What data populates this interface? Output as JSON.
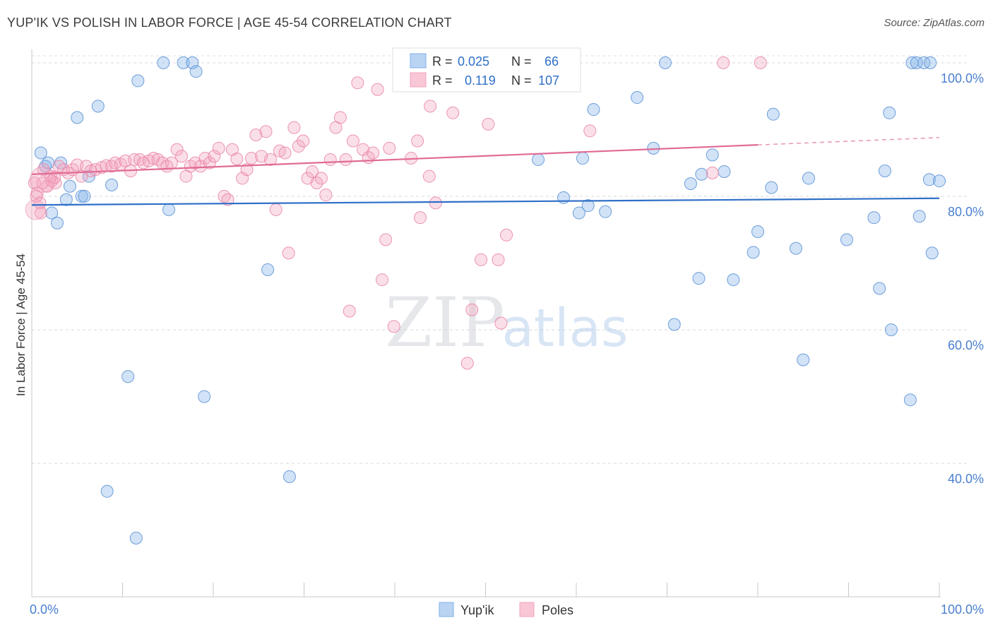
{
  "header": {
    "title": "YUP'IK VS POLISH IN LABOR FORCE | AGE 45-54 CORRELATION CHART",
    "source": "Source: ZipAtlas.com"
  },
  "watermark": {
    "zip": "ZIP",
    "atlas": "atlas"
  },
  "legend_box": {
    "rows": [
      {
        "r_label": "R =",
        "r_value": "0.025",
        "n_label": "N =",
        "n_value": "66",
        "color": "#7fb0e8"
      },
      {
        "r_label": "R =",
        "r_value": "0.119",
        "n_label": "N =",
        "n_value": "107",
        "color": "#f4a3bd"
      }
    ]
  },
  "chart_data": {
    "type": "scatter",
    "title": "YUP'IK VS POLISH IN LABOR FORCE | AGE 45-54 CORRELATION CHART",
    "xlabel": "",
    "ylabel": "In Labor Force | Age 45-54",
    "xlim": [
      0,
      100
    ],
    "ylim": [
      20,
      102
    ],
    "x_tick_labels": [
      "0.0%",
      "100.0%"
    ],
    "y_ticks": [
      40,
      60,
      80,
      100
    ],
    "y_tick_labels": [
      "40.0%",
      "60.0%",
      "80.0%",
      "100.0%"
    ],
    "grid": true,
    "legend_position": "bottom-center",
    "series": [
      {
        "name": "Yup'ik",
        "color": "#7fb0e8",
        "stroke": "#5e95d6",
        "trend": {
          "x": [
            0,
            100
          ],
          "y": [
            78.7,
            79.7
          ],
          "color": "#2f6fc7"
        },
        "points": [
          [
            1,
            86.5
          ],
          [
            1.5,
            84.5
          ],
          [
            1.8,
            85
          ],
          [
            2.2,
            77.5
          ],
          [
            2.8,
            76
          ],
          [
            3.2,
            85
          ],
          [
            3.8,
            79.5
          ],
          [
            4.2,
            81.5
          ],
          [
            5,
            91.8
          ],
          [
            5.5,
            80
          ],
          [
            5.8,
            80
          ],
          [
            6.3,
            83
          ],
          [
            7.3,
            93.5
          ],
          [
            8.3,
            35.8
          ],
          [
            8.8,
            81.7
          ],
          [
            10.6,
            53
          ],
          [
            11.5,
            28.8
          ],
          [
            11.7,
            97.3
          ],
          [
            14.5,
            100
          ],
          [
            15.1,
            78
          ],
          [
            16.7,
            100
          ],
          [
            17.7,
            100
          ],
          [
            18.1,
            98.7
          ],
          [
            19,
            50
          ],
          [
            26,
            69
          ],
          [
            28.4,
            38
          ],
          [
            55.8,
            85.5
          ],
          [
            58.6,
            79.8
          ],
          [
            60.3,
            77.5
          ],
          [
            60.7,
            85.7
          ],
          [
            61.3,
            78.6
          ],
          [
            61.9,
            93
          ],
          [
            63.2,
            77.7
          ],
          [
            66.7,
            94.8
          ],
          [
            68.5,
            87.2
          ],
          [
            70.8,
            60.8
          ],
          [
            69.8,
            100
          ],
          [
            72.6,
            81.9
          ],
          [
            73.5,
            67.7
          ],
          [
            73.8,
            83.3
          ],
          [
            75,
            86.2
          ],
          [
            76.3,
            83.7
          ],
          [
            77.3,
            67.5
          ],
          [
            79.5,
            71.6
          ],
          [
            80,
            74.7
          ],
          [
            81.5,
            81.3
          ],
          [
            81.7,
            92.3
          ],
          [
            84.2,
            72.2
          ],
          [
            85,
            55.5
          ],
          [
            85.6,
            82.7
          ],
          [
            89.8,
            73.5
          ],
          [
            92.8,
            76.8
          ],
          [
            93.4,
            66.2
          ],
          [
            94,
            83.8
          ],
          [
            94.5,
            92.5
          ],
          [
            94.7,
            60
          ],
          [
            96.8,
            49.5
          ],
          [
            97,
            100
          ],
          [
            97.5,
            100
          ],
          [
            98.3,
            100
          ],
          [
            99,
            100
          ],
          [
            99.2,
            71.5
          ],
          [
            98.9,
            82.5
          ],
          [
            100,
            82.3
          ],
          [
            97.8,
            77
          ]
        ]
      },
      {
        "name": "Poles",
        "color": "#f4a3bd",
        "stroke": "#e98aaa",
        "trend": {
          "x": [
            0,
            80
          ],
          "y": [
            83.3,
            87.7
          ],
          "dash_to": [
            100,
            88.8
          ],
          "color": "#e06b96"
        },
        "points": [
          [
            0.3,
            82
          ],
          [
            0.6,
            80.5
          ],
          [
            0.9,
            79
          ],
          [
            1.3,
            84
          ],
          [
            1.7,
            81.5
          ],
          [
            2.1,
            83
          ],
          [
            2.6,
            82
          ],
          [
            3,
            84.5
          ],
          [
            3.5,
            84
          ],
          [
            4,
            83.5
          ],
          [
            4.5,
            84
          ],
          [
            5,
            84.7
          ],
          [
            5.5,
            83
          ],
          [
            6,
            84.5
          ],
          [
            6.5,
            83.8
          ],
          [
            7,
            84
          ],
          [
            7.7,
            84.3
          ],
          [
            8.2,
            84.6
          ],
          [
            8.8,
            84.5
          ],
          [
            9.2,
            85
          ],
          [
            9.8,
            84.8
          ],
          [
            10.3,
            85.3
          ],
          [
            10.9,
            83.8
          ],
          [
            11.3,
            85.5
          ],
          [
            11.9,
            85.5
          ],
          [
            12.3,
            85
          ],
          [
            12.9,
            85.3
          ],
          [
            13.4,
            85.7
          ],
          [
            13.9,
            85.5
          ],
          [
            14.4,
            85
          ],
          [
            14.9,
            84.5
          ],
          [
            15.4,
            85
          ],
          [
            16,
            87
          ],
          [
            16.5,
            86
          ],
          [
            17,
            83
          ],
          [
            17.5,
            84.5
          ],
          [
            18,
            85
          ],
          [
            18.6,
            84.5
          ],
          [
            19.1,
            85.7
          ],
          [
            19.6,
            85
          ],
          [
            20.1,
            86
          ],
          [
            20.6,
            87.2
          ],
          [
            21.2,
            80
          ],
          [
            21.6,
            79.5
          ],
          [
            22.1,
            87
          ],
          [
            22.6,
            85.6
          ],
          [
            23.2,
            82.7
          ],
          [
            23.7,
            84
          ],
          [
            24.2,
            85.7
          ],
          [
            24.7,
            89.2
          ],
          [
            25.3,
            86
          ],
          [
            25.8,
            89.7
          ],
          [
            26.3,
            85.5
          ],
          [
            26.9,
            78
          ],
          [
            27.3,
            86.8
          ],
          [
            27.9,
            86.5
          ],
          [
            28.3,
            71.5
          ],
          [
            28.9,
            90.3
          ],
          [
            29.4,
            87.5
          ],
          [
            29.9,
            88.3
          ],
          [
            30.4,
            82.7
          ],
          [
            30.9,
            83.7
          ],
          [
            31.4,
            82
          ],
          [
            31.9,
            82.7
          ],
          [
            32.4,
            80.2
          ],
          [
            32.9,
            85.5
          ],
          [
            33.5,
            90.3
          ],
          [
            34,
            91.8
          ],
          [
            34.6,
            85.5
          ],
          [
            35,
            62.8
          ],
          [
            35.4,
            88.3
          ],
          [
            35.9,
            97
          ],
          [
            36.5,
            87
          ],
          [
            37.1,
            85.8
          ],
          [
            37.6,
            86.5
          ],
          [
            38.1,
            96
          ],
          [
            38.6,
            67.5
          ],
          [
            39,
            73.5
          ],
          [
            39.4,
            87.2
          ],
          [
            39.9,
            60.5
          ],
          [
            40.5,
            100
          ],
          [
            41.8,
            85.7
          ],
          [
            42.5,
            88.3
          ],
          [
            42.8,
            76.8
          ],
          [
            43.8,
            83
          ],
          [
            43.9,
            93.5
          ],
          [
            44.5,
            79
          ],
          [
            45.2,
            100
          ],
          [
            46.4,
            92.5
          ],
          [
            48,
            55
          ],
          [
            48.5,
            63
          ],
          [
            49.5,
            70.5
          ],
          [
            50.3,
            90.8
          ],
          [
            51.4,
            70.5
          ],
          [
            51.7,
            61
          ],
          [
            52.3,
            74.2
          ],
          [
            61.5,
            89.8
          ],
          [
            75,
            83.5
          ],
          [
            76.2,
            100
          ],
          [
            80.3,
            100
          ],
          [
            1,
            77.5
          ],
          [
            0.5,
            80
          ],
          [
            1.2,
            82
          ],
          [
            2.2,
            82.3
          ],
          [
            2.5,
            82.8
          ]
        ]
      }
    ]
  }
}
